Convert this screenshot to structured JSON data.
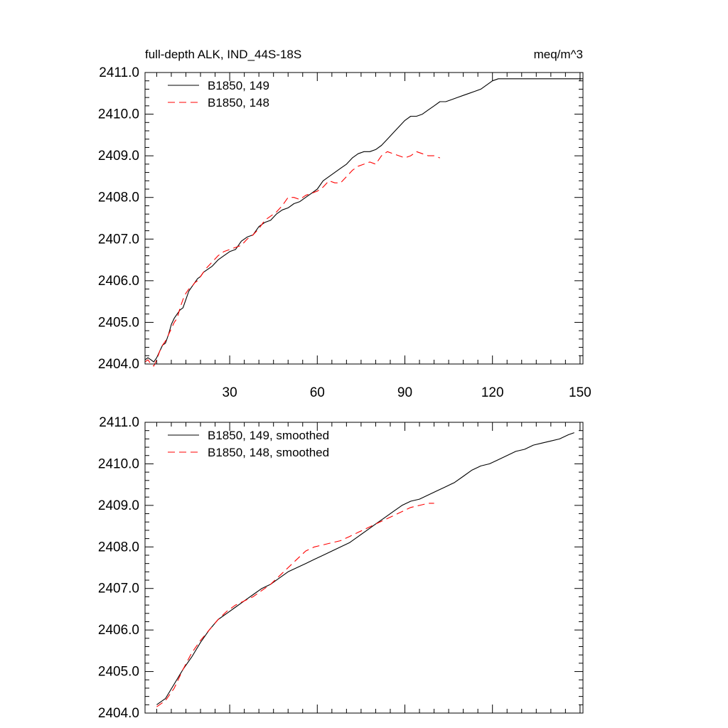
{
  "chart_data": [
    {
      "type": "line",
      "title": "full-depth ALK, IND_44S-18S",
      "units_label": "meq/m^3",
      "xlim": [
        1,
        151
      ],
      "ylim": [
        2404.0,
        2411.0
      ],
      "x_ticks": [
        30,
        60,
        90,
        120,
        150
      ],
      "x_tick_labels": [
        "30",
        "60",
        "90",
        "120",
        "150"
      ],
      "x_tick_labels_shown": true,
      "y_ticks": [
        2404,
        2405,
        2406,
        2407,
        2408,
        2409,
        2410,
        2411
      ],
      "y_tick_labels": [
        "2404.0",
        "2405.0",
        "2406.0",
        "2407.0",
        "2408.0",
        "2409.0",
        "2410.0",
        "2411.0"
      ],
      "legend_position": "top-left",
      "grid": false,
      "series": [
        {
          "name": "B1850, 149",
          "color": "#000000",
          "dash": "solid",
          "x": [
            1,
            2,
            3,
            4,
            5,
            6,
            7,
            8,
            9,
            10,
            11,
            12,
            13,
            14,
            15,
            16,
            17,
            18,
            19,
            20,
            21,
            22,
            24,
            26,
            28,
            30,
            32,
            34,
            36,
            38,
            40,
            42,
            44,
            46,
            48,
            50,
            52,
            54,
            56,
            58,
            60,
            62,
            64,
            66,
            68,
            70,
            72,
            74,
            76,
            78,
            80,
            82,
            84,
            86,
            88,
            90,
            92,
            94,
            96,
            98,
            100,
            102,
            104,
            106,
            108,
            110,
            112,
            114,
            116,
            118,
            120,
            122,
            124,
            126,
            128,
            130,
            132,
            134,
            136,
            138,
            140,
            142,
            144,
            146,
            148,
            150,
            151
          ],
          "y": [
            2404.1,
            2404.15,
            2404.1,
            2404.05,
            2404.15,
            2404.3,
            2404.45,
            2404.5,
            2404.7,
            2404.95,
            2405.1,
            2405.2,
            2405.3,
            2405.35,
            2405.55,
            2405.75,
            2405.85,
            2405.95,
            2406.05,
            2406.1,
            2406.2,
            2406.25,
            2406.35,
            2406.5,
            2406.6,
            2406.7,
            2406.75,
            2406.95,
            2407.05,
            2407.1,
            2407.3,
            2407.4,
            2407.45,
            2407.6,
            2407.7,
            2407.75,
            2407.85,
            2407.9,
            2408.0,
            2408.1,
            2408.2,
            2408.4,
            2408.5,
            2408.6,
            2408.7,
            2408.8,
            2408.95,
            2409.05,
            2409.1,
            2409.1,
            2409.15,
            2409.25,
            2409.4,
            2409.55,
            2409.7,
            2409.85,
            2409.95,
            2409.95,
            2410.0,
            2410.1,
            2410.2,
            2410.3,
            2410.3,
            2410.35,
            2410.4,
            2410.45,
            2410.5,
            2410.55,
            2410.6,
            2410.7,
            2410.8,
            2410.85,
            2410.85,
            2410.85,
            2410.85,
            2410.85,
            2410.85,
            2410.85,
            2410.85,
            2410.85,
            2410.85,
            2410.85,
            2410.85,
            2410.85,
            2410.85,
            2410.85,
            2410.85
          ]
        },
        {
          "name": "B1850, 148",
          "color": "#ff0000",
          "dash": "dashed",
          "x": [
            1,
            2,
            3,
            4,
            5,
            6,
            7,
            8,
            9,
            10,
            11,
            12,
            13,
            14,
            15,
            16,
            17,
            18,
            19,
            20,
            21,
            22,
            24,
            26,
            28,
            30,
            32,
            34,
            36,
            38,
            40,
            42,
            44,
            46,
            48,
            50,
            52,
            54,
            56,
            58,
            60,
            62,
            64,
            66,
            68,
            70,
            72,
            74,
            76,
            78,
            80,
            82,
            84,
            86,
            88,
            90,
            92,
            94,
            96,
            98,
            100,
            102
          ],
          "y": [
            2404.05,
            2404.1,
            2404.0,
            2403.95,
            2404.1,
            2404.3,
            2404.45,
            2404.55,
            2404.7,
            2404.85,
            2405.0,
            2405.1,
            2405.35,
            2405.55,
            2405.7,
            2405.8,
            2405.85,
            2405.95,
            2406.0,
            2406.1,
            2406.2,
            2406.3,
            2406.45,
            2406.6,
            2406.7,
            2406.75,
            2406.8,
            2406.85,
            2407.0,
            2407.1,
            2407.25,
            2407.45,
            2407.55,
            2407.65,
            2407.8,
            2408.0,
            2408.0,
            2407.95,
            2408.05,
            2408.1,
            2408.15,
            2408.25,
            2408.4,
            2408.35,
            2408.35,
            2408.5,
            2408.65,
            2408.75,
            2408.8,
            2408.85,
            2408.8,
            2409.0,
            2409.1,
            2409.05,
            2409.0,
            2408.95,
            2409.0,
            2409.1,
            2409.05,
            2409.0,
            2409.0,
            2408.95
          ]
        }
      ]
    },
    {
      "type": "line",
      "title": "",
      "units_label": "",
      "xlim": [
        1,
        151
      ],
      "ylim": [
        2404.0,
        2411.0
      ],
      "x_ticks": [
        30,
        60,
        90,
        120,
        150
      ],
      "x_tick_labels": [],
      "x_tick_labels_shown": false,
      "y_ticks": [
        2404,
        2405,
        2406,
        2407,
        2408,
        2409,
        2410,
        2411
      ],
      "y_tick_labels": [
        "2404.0",
        "2405.0",
        "2406.0",
        "2407.0",
        "2408.0",
        "2409.0",
        "2410.0",
        "2411.0"
      ],
      "legend_position": "top-left",
      "grid": false,
      "series": [
        {
          "name": "B1850, 149, smoothed",
          "color": "#000000",
          "dash": "solid",
          "x": [
            5,
            8,
            11,
            14,
            17,
            20,
            23,
            26,
            29,
            32,
            35,
            38,
            41,
            44,
            47,
            50,
            53,
            56,
            59,
            62,
            65,
            68,
            71,
            74,
            77,
            80,
            83,
            86,
            89,
            92,
            95,
            98,
            101,
            104,
            107,
            110,
            113,
            116,
            119,
            122,
            125,
            128,
            131,
            134,
            137,
            140,
            143,
            146,
            148
          ],
          "y": [
            2404.2,
            2404.35,
            2404.7,
            2405.05,
            2405.35,
            2405.7,
            2406.0,
            2406.25,
            2406.4,
            2406.55,
            2406.7,
            2406.85,
            2407.0,
            2407.1,
            2407.25,
            2407.4,
            2407.5,
            2407.6,
            2407.7,
            2407.8,
            2407.9,
            2408.0,
            2408.1,
            2408.25,
            2408.4,
            2408.55,
            2408.7,
            2408.85,
            2409.0,
            2409.1,
            2409.15,
            2409.25,
            2409.35,
            2409.45,
            2409.55,
            2409.7,
            2409.85,
            2409.95,
            2410.0,
            2410.1,
            2410.2,
            2410.3,
            2410.35,
            2410.45,
            2410.5,
            2410.55,
            2410.6,
            2410.7,
            2410.75
          ]
        },
        {
          "name": "B1850, 148, smoothed",
          "color": "#ff0000",
          "dash": "dashed",
          "x": [
            5,
            8,
            11,
            14,
            17,
            20,
            23,
            26,
            29,
            32,
            35,
            38,
            41,
            44,
            47,
            50,
            53,
            56,
            59,
            62,
            65,
            68,
            71,
            74,
            77,
            80,
            83,
            86,
            89,
            92,
            95,
            98,
            100
          ],
          "y": [
            2404.15,
            2404.3,
            2404.6,
            2405.05,
            2405.45,
            2405.75,
            2406.0,
            2406.25,
            2406.45,
            2406.6,
            2406.7,
            2406.8,
            2406.95,
            2407.1,
            2407.3,
            2407.5,
            2407.7,
            2407.9,
            2408.0,
            2408.05,
            2408.1,
            2408.15,
            2408.25,
            2408.35,
            2408.45,
            2408.55,
            2408.65,
            2408.75,
            2408.85,
            2408.95,
            2409.0,
            2409.05,
            2409.05
          ]
        }
      ]
    }
  ]
}
